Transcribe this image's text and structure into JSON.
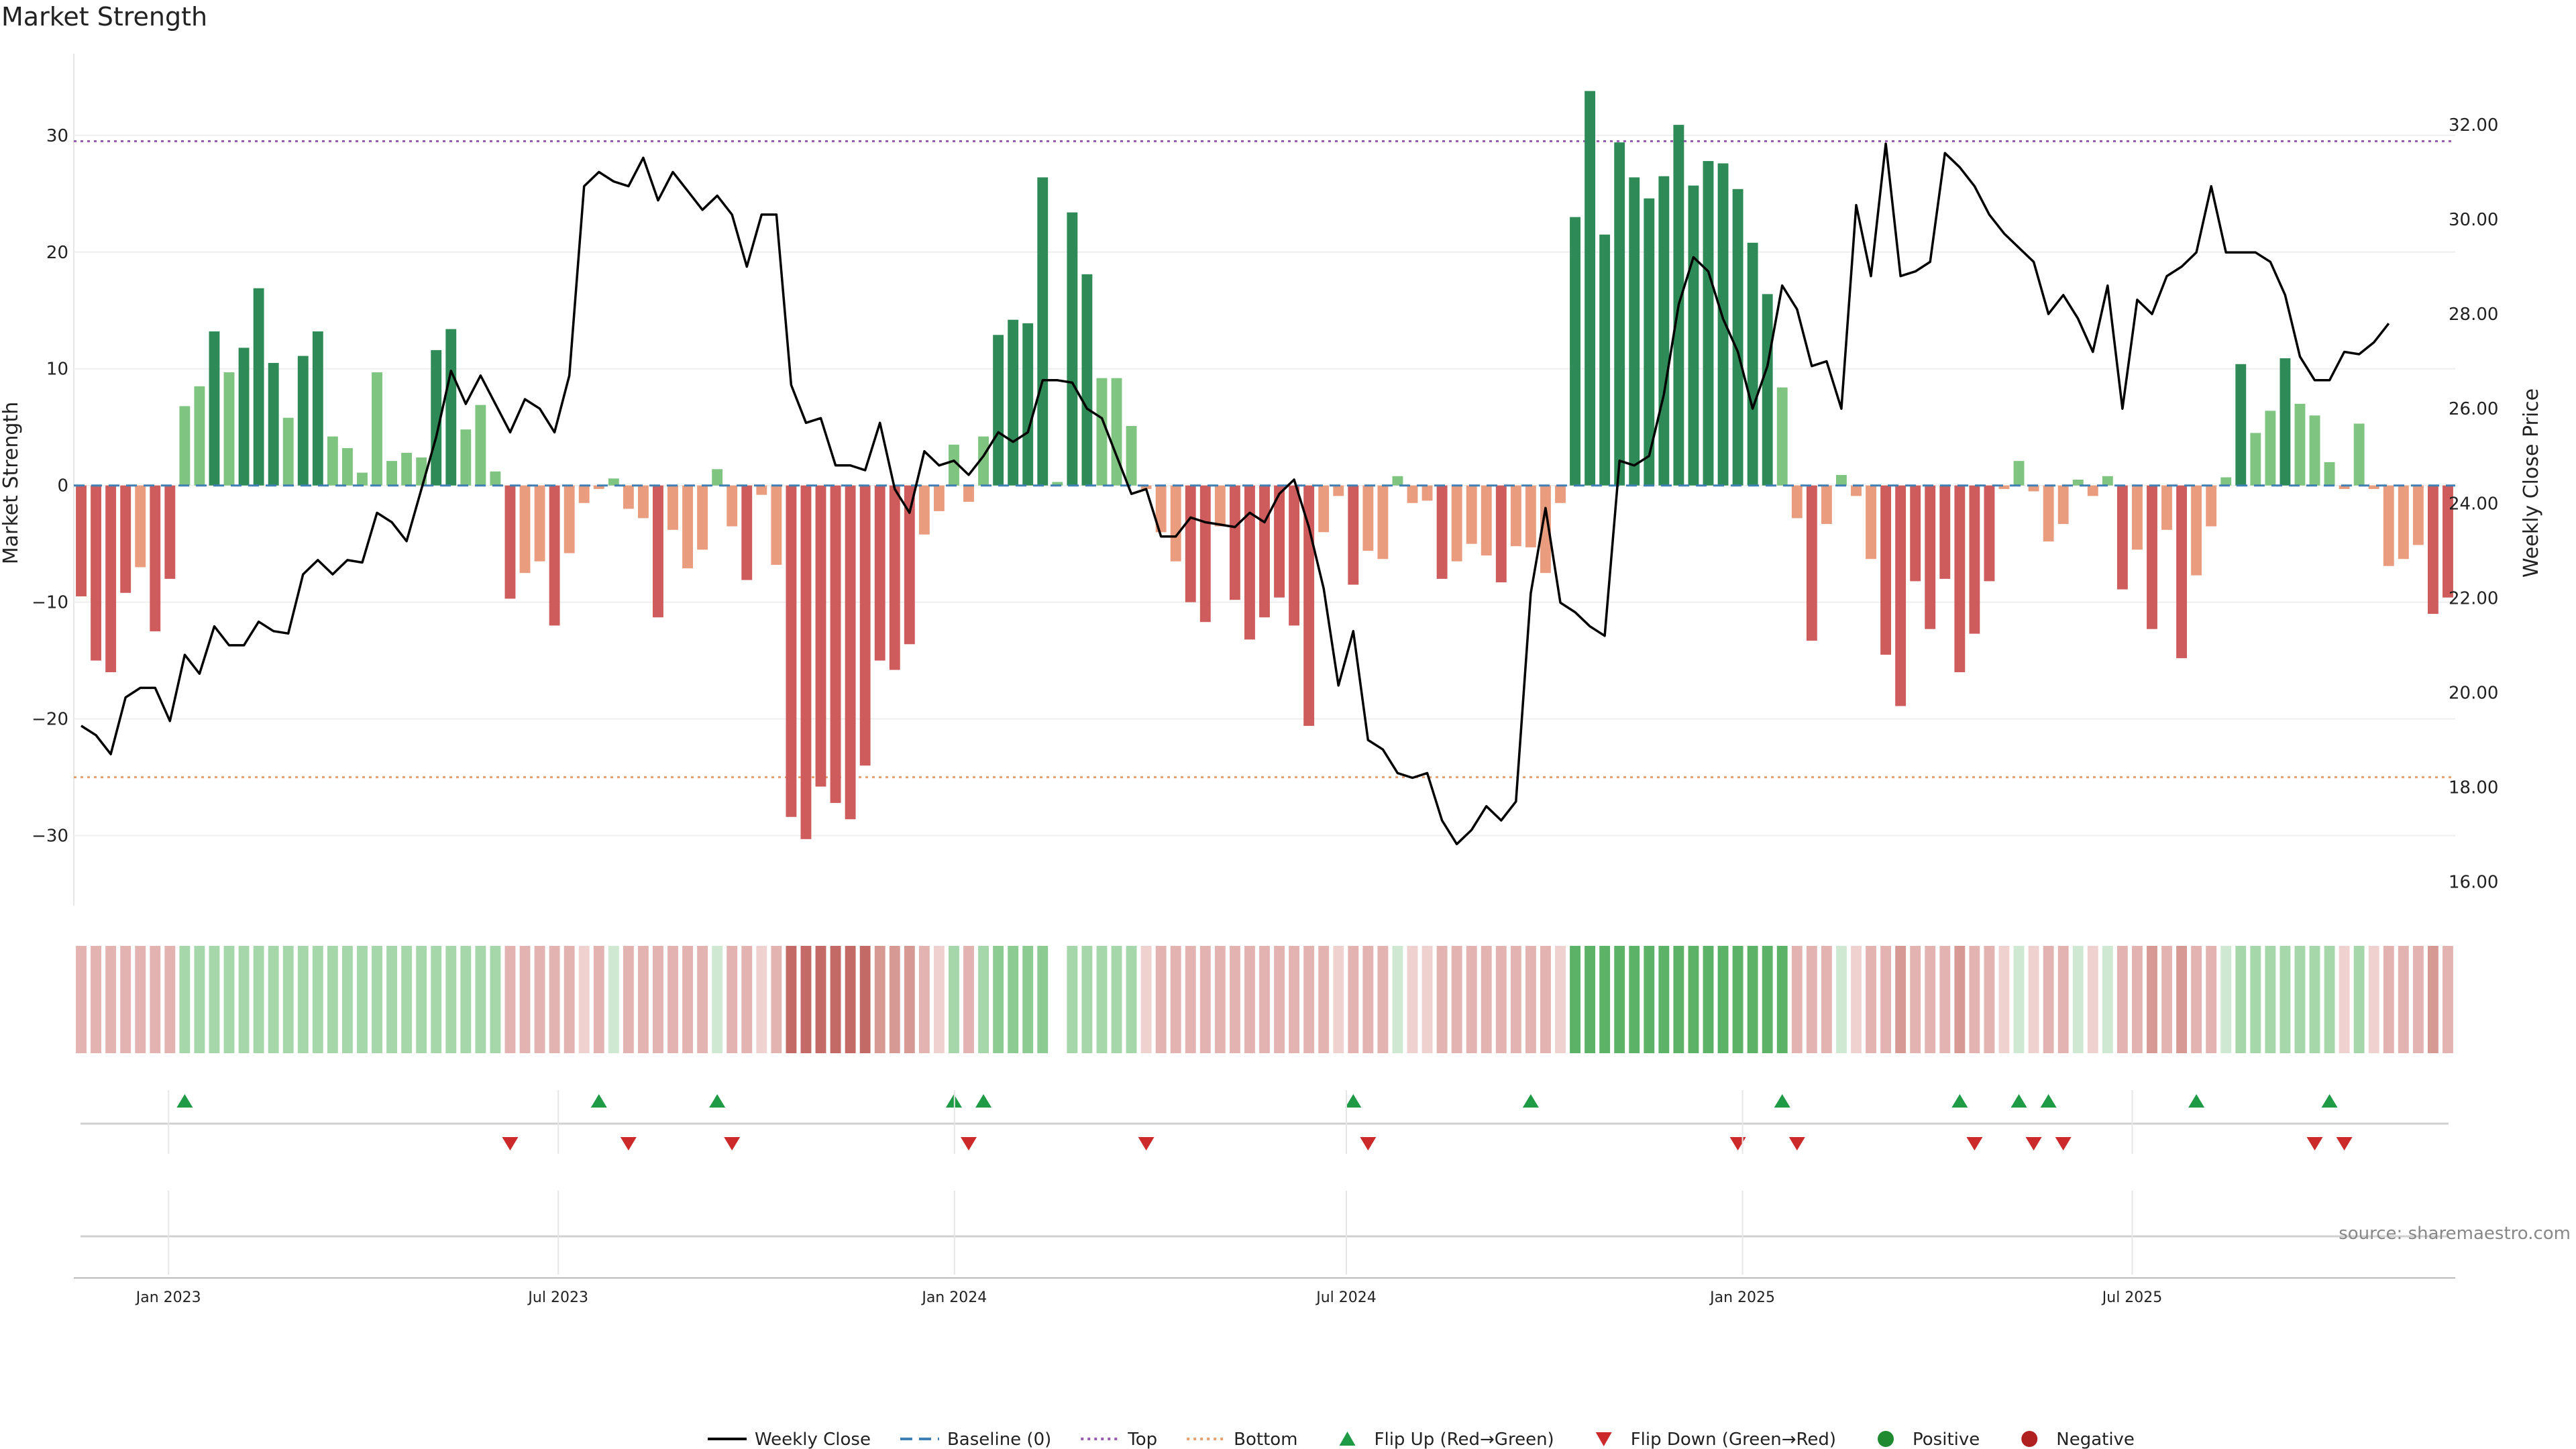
{
  "chart_data": {
    "type": "bar",
    "title": "Market Strength",
    "ylabel_left": "Market Strength",
    "ylabel_right": "Weekly Close Price",
    "ylim_left": [
      -36,
      37
    ],
    "ylim_right": [
      15.5,
      33.5
    ],
    "yticks_left": [
      -30,
      -20,
      -10,
      0,
      10,
      20,
      30
    ],
    "yticks_right": [
      "16.00",
      "18.00",
      "20.00",
      "22.00",
      "24.00",
      "26.00",
      "28.00",
      "30.00",
      "32.00"
    ],
    "top_line": 29.5,
    "bottom_line": -25,
    "x_start": "2022-11-18",
    "x_end": "2025-11-28",
    "x_ticks": [
      {
        "date": "2023-01-01",
        "label": "Jan 2023"
      },
      {
        "date": "2023-07-01",
        "label": "Jul 2023"
      },
      {
        "date": "2024-01-01",
        "label": "Jan 2024"
      },
      {
        "date": "2024-07-01",
        "label": "Jul 2024"
      },
      {
        "date": "2025-01-01",
        "label": "Jan 2025"
      },
      {
        "date": "2025-07-01",
        "label": "Jul 2025"
      }
    ],
    "strength_series_name": "Market Strength",
    "strength": [
      -9.5,
      -15,
      -16,
      -9.2,
      -7,
      -12.5,
      -8,
      6.8,
      8.5,
      13.2,
      9.7,
      11.8,
      16.9,
      10.5,
      5.8,
      11.1,
      13.2,
      4.2,
      3.2,
      1.1,
      9.7,
      2.1,
      2.8,
      2.4,
      11.6,
      13.4,
      4.8,
      6.9,
      1.2,
      -9.7,
      -7.5,
      -6.5,
      -12,
      -5.8,
      -1.5,
      -0.3,
      0.6,
      -2,
      -2.8,
      -11.3,
      -3.8,
      -7.1,
      -5.5,
      1.4,
      -3.5,
      -8.1,
      -0.8,
      -6.8,
      -28.4,
      -30.3,
      -25.8,
      -27.2,
      -28.6,
      -24,
      -15,
      -15.8,
      -13.6,
      -4.2,
      -2.2,
      3.5,
      -1.4,
      4.2,
      12.9,
      14.2,
      13.9,
      26.4,
      0.3,
      23.4,
      18.1,
      9.2,
      9.2,
      5.1,
      -0.3,
      -4,
      -6.5,
      -10,
      -11.7,
      -3.5,
      -9.8,
      -13.2,
      -11.3,
      -9.6,
      -12,
      -20.6,
      -4,
      -0.9,
      -8.5,
      -5.6,
      -6.3,
      0.8,
      -1.5,
      -1.3,
      -8,
      -6.5,
      -5,
      -6,
      -8.3,
      -5.2,
      -5.3,
      -7.5,
      -1.5,
      23,
      33.8,
      21.5,
      29.4,
      26.4,
      24.6,
      26.5,
      30.9,
      25.7,
      27.8,
      27.6,
      25.4,
      20.8,
      16.4,
      8.4,
      -2.8,
      -13.3,
      -3.3,
      0.9,
      -0.9,
      -6.3,
      -14.5,
      -18.9,
      -8.2,
      -12.3,
      -8,
      -16,
      -12.7,
      -8.2,
      -0.3,
      2.1,
      -0.5,
      -4.8,
      -3.3,
      0.5,
      -0.9,
      0.8,
      -8.9,
      -5.5,
      -12.3,
      -3.8,
      -14.8,
      -7.7,
      -3.5,
      0.7,
      10.4,
      4.5,
      6.4,
      10.9,
      7,
      6,
      2,
      -0.3,
      5.3,
      -0.3,
      -6.9,
      -6.3,
      -5.1,
      -11,
      -9.6
    ],
    "price_series_name": "Weekly Close",
    "price": [
      19.3,
      19.1,
      18.7,
      19.9,
      20.1,
      20.1,
      19.4,
      20.8,
      20.4,
      21.4,
      21.0,
      21.0,
      21.5,
      21.3,
      21.25,
      22.5,
      22.8,
      22.5,
      22.8,
      22.75,
      23.8,
      23.6,
      23.2,
      24.3,
      25.4,
      26.8,
      26.1,
      26.7,
      26.1,
      25.5,
      26.2,
      26.0,
      25.5,
      26.7,
      30.7,
      31.0,
      30.8,
      30.7,
      31.3,
      30.4,
      31.0,
      30.6,
      30.2,
      30.5,
      30.1,
      29.0,
      30.1,
      30.1,
      26.5,
      25.7,
      25.8,
      24.8,
      24.8,
      24.7,
      25.7,
      24.3,
      23.8,
      25.1,
      24.8,
      24.9,
      24.6,
      25.0,
      25.5,
      25.3,
      25.5,
      26.6,
      26.6,
      26.55,
      26.0,
      25.8,
      25.0,
      24.2,
      24.3,
      23.3,
      23.3,
      23.7,
      23.6,
      23.55,
      23.5,
      23.8,
      23.6,
      24.2,
      24.5,
      23.5,
      22.2,
      20.15,
      21.3,
      19.0,
      18.8,
      18.3,
      18.2,
      18.3,
      17.3,
      16.8,
      17.1,
      17.6,
      17.3,
      17.7,
      22.1,
      23.9,
      21.9,
      21.7,
      21.4,
      21.2,
      24.9,
      24.8,
      25.0,
      26.3,
      28.2,
      29.2,
      28.9,
      27.9,
      27.2,
      26.0,
      26.9,
      28.6,
      28.1,
      26.9,
      27.0,
      26.0,
      30.3,
      28.8,
      31.6,
      28.8,
      28.9,
      29.1,
      31.4,
      31.1,
      30.7,
      30.1,
      29.7,
      29.4,
      29.1,
      28.0,
      28.4,
      27.9,
      27.2,
      28.6,
      26.0,
      28.3,
      28.0,
      28.8,
      29.0,
      29.3,
      30.7,
      29.3,
      29.3,
      29.3,
      29.1,
      28.4,
      27.1,
      26.6,
      26.6,
      27.2,
      27.15,
      27.4,
      27.8
    ],
    "heatmap_levels": [
      -2,
      -2,
      -2,
      -2,
      -2,
      -2,
      -2,
      2,
      2,
      2,
      2,
      2,
      2,
      2,
      2,
      2,
      2,
      2,
      2,
      2,
      2,
      2,
      2,
      2,
      2,
      2,
      2,
      2,
      2,
      -2,
      -2,
      -2,
      -2,
      -2,
      -1,
      -2,
      1,
      -2,
      -2,
      -2,
      -2,
      -2,
      -2,
      1,
      -2,
      -2,
      -1,
      -2,
      -4,
      -4,
      -4,
      -4,
      -4,
      -4,
      -3,
      -3,
      -3,
      -2,
      -1,
      2,
      -2,
      2,
      3,
      3,
      3,
      3,
      0,
      2,
      2,
      2,
      2,
      2,
      -1,
      -2,
      -2,
      -2,
      -2,
      -2,
      -2,
      -2,
      -2,
      -2,
      -2,
      -2,
      -2,
      -1,
      -2,
      -2,
      -2,
      1,
      -1,
      -1,
      -2,
      -2,
      -2,
      -2,
      -2,
      -2,
      -2,
      -2,
      -1,
      4,
      4,
      4,
      4,
      4,
      4,
      4,
      4,
      4,
      4,
      4,
      4,
      4,
      4,
      4,
      -2,
      -2,
      -2,
      1,
      -1,
      -2,
      -2,
      -3,
      -2,
      -2,
      -2,
      -3,
      -2,
      -2,
      -1,
      1,
      -1,
      -2,
      -2,
      1,
      -1,
      1,
      -2,
      -2,
      -3,
      -2,
      -3,
      -2,
      -2,
      1,
      2,
      2,
      2,
      2,
      2,
      2,
      2,
      -1,
      2,
      -1,
      -2,
      -2,
      -2,
      -3,
      -2
    ],
    "flip_up_weeks": [
      7,
      35,
      43,
      59,
      61,
      86,
      98,
      115,
      127,
      131,
      133,
      143,
      152
    ],
    "flip_down_weeks": [
      29,
      37,
      44,
      60,
      72,
      87,
      112,
      116,
      128,
      132,
      134,
      151,
      153
    ],
    "legend": [
      {
        "label": "Weekly Close",
        "color": "#000000",
        "symbol": "line"
      },
      {
        "label": "Baseline (0)",
        "color": "#3f7fb4",
        "symbol": "dash"
      },
      {
        "label": "Top",
        "color": "#9a5bb3",
        "symbol": "dot"
      },
      {
        "label": "Bottom",
        "color": "#e8a070",
        "symbol": "dot"
      },
      {
        "label": "Flip Up (Red→Green)",
        "color": "#1f9a45",
        "symbol": "tri-up"
      },
      {
        "label": "Flip Down (Green→Red)",
        "color": "#cc2a2a",
        "symbol": "tri-down"
      },
      {
        "label": "Positive",
        "color": "#1f8a30",
        "symbol": "circle"
      },
      {
        "label": "Negative",
        "color": "#b02020",
        "symbol": "circle"
      }
    ],
    "source": "source: sharemaestro.com"
  }
}
